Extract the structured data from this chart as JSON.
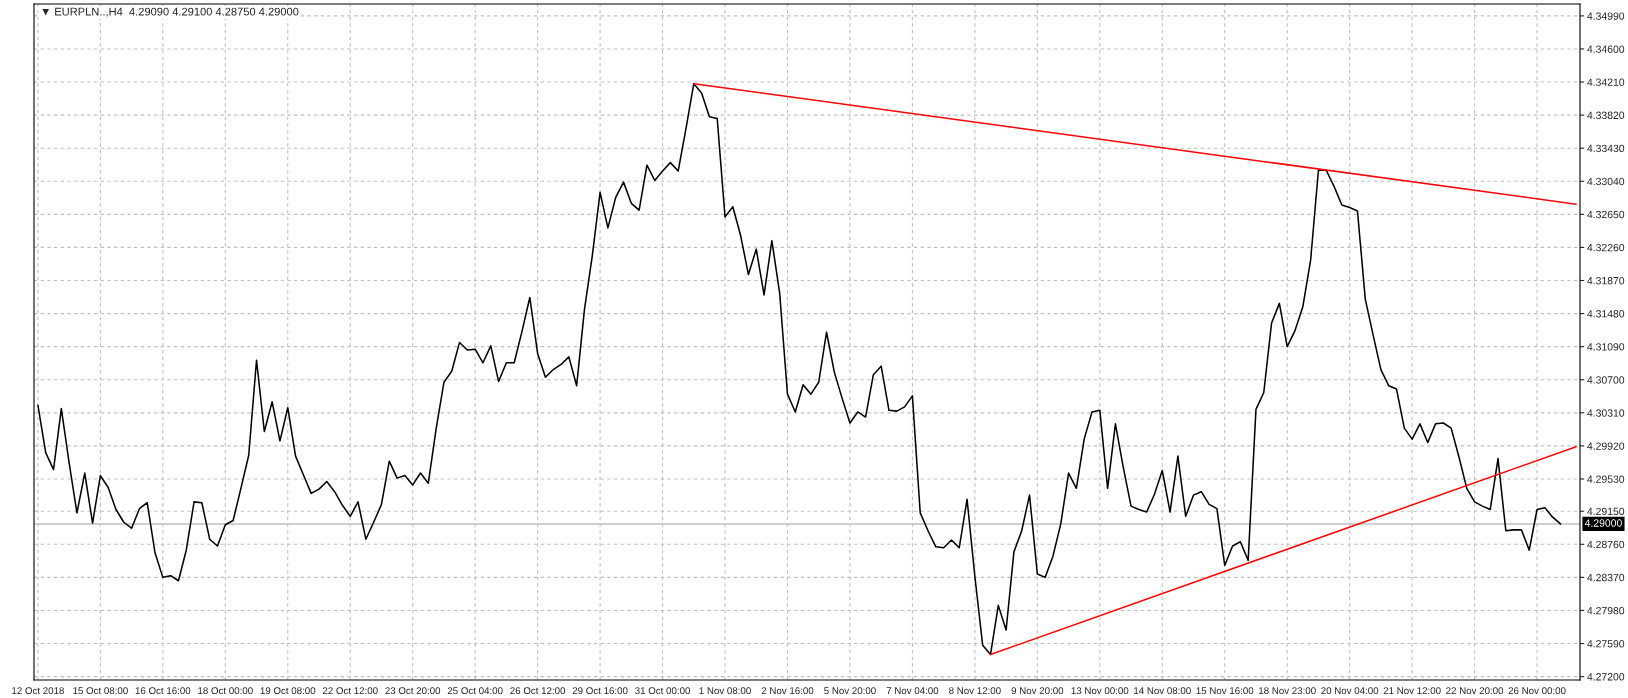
{
  "chart_data": {
    "type": "line",
    "title": "▼ EURPLN..,H4  4.29090 4.29100 4.28750 4.29000",
    "categories": [
      "12 Oct 2018",
      null,
      null,
      null,
      null,
      null,
      null,
      null,
      "15 Oct 08:00",
      null,
      null,
      null,
      null,
      null,
      null,
      null,
      "16 Oct 16:00",
      null,
      null,
      null,
      null,
      null,
      null,
      null,
      "18 Oct 00:00",
      null,
      null,
      null,
      null,
      null,
      null,
      null,
      "19 Oct 08:00",
      null,
      null,
      null,
      null,
      null,
      null,
      null,
      "22 Oct 12:00",
      null,
      null,
      null,
      null,
      null,
      null,
      null,
      "23 Oct 20:00",
      null,
      null,
      null,
      null,
      null,
      null,
      null,
      "25 Oct 04:00",
      null,
      null,
      null,
      null,
      null,
      null,
      null,
      "26 Oct 12:00",
      null,
      null,
      null,
      null,
      null,
      null,
      null,
      "29 Oct 16:00",
      null,
      null,
      null,
      null,
      null,
      null,
      null,
      "31 Oct 00:00",
      null,
      null,
      null,
      null,
      null,
      null,
      null,
      "1 Nov 08:00",
      null,
      null,
      null,
      null,
      null,
      null,
      null,
      "2 Nov 16:00",
      null,
      null,
      null,
      null,
      null,
      null,
      null,
      "5 Nov 20:00",
      null,
      null,
      null,
      null,
      null,
      null,
      null,
      "7 Nov 04:00",
      null,
      null,
      null,
      null,
      null,
      null,
      null,
      "8 Nov 12:00",
      null,
      null,
      null,
      null,
      null,
      null,
      null,
      "9 Nov 20:00",
      null,
      null,
      null,
      null,
      null,
      null,
      null,
      "13 Nov 00:00",
      null,
      null,
      null,
      null,
      null,
      null,
      null,
      "14 Nov 08:00",
      null,
      null,
      null,
      null,
      null,
      null,
      null,
      "15 Nov 16:00",
      null,
      null,
      null,
      null,
      null,
      null,
      null,
      "18 Nov 23:00",
      null,
      null,
      null,
      null,
      null,
      null,
      null,
      "20 Nov 04:00",
      null,
      null,
      null,
      null,
      null,
      null,
      null,
      "21 Nov 12:00",
      null,
      null,
      null,
      null,
      null,
      null,
      null,
      "22 Nov 20:00",
      null,
      null,
      null,
      null,
      null,
      null,
      null,
      "26 Nov 00:00",
      null,
      null,
      null,
      null,
      null
    ],
    "ylim": [
      4.2716,
      4.3513
    ],
    "yticks": [
      {
        "value": 4.272,
        "label": "4.27200"
      },
      {
        "value": 4.2759,
        "label": "4.27590"
      },
      {
        "value": 4.2798,
        "label": "4.27980"
      },
      {
        "value": 4.2837,
        "label": "4.28370"
      },
      {
        "value": 4.2876,
        "label": "4.28760"
      },
      {
        "value": 4.2915,
        "label": "4.29150"
      },
      {
        "value": 4.2953,
        "label": "4.29530"
      },
      {
        "value": 4.2992,
        "label": "4.29920"
      },
      {
        "value": 4.3031,
        "label": "4.30310"
      },
      {
        "value": 4.307,
        "label": "4.30700"
      },
      {
        "value": 4.3109,
        "label": "4.31090"
      },
      {
        "value": 4.3148,
        "label": "4.31480"
      },
      {
        "value": 4.3187,
        "label": "4.31870"
      },
      {
        "value": 4.3226,
        "label": "4.32260"
      },
      {
        "value": 4.3265,
        "label": "4.32650"
      },
      {
        "value": 4.3304,
        "label": "4.33040"
      },
      {
        "value": 4.3343,
        "label": "4.33430"
      },
      {
        "value": 4.3382,
        "label": "4.33820"
      },
      {
        "value": 4.3421,
        "label": "4.34210"
      },
      {
        "value": 4.346,
        "label": "4.34600"
      },
      {
        "value": 4.3499,
        "label": "4.34990"
      }
    ],
    "grid": true,
    "ref_lines": [
      {
        "axis": "y",
        "value": 4.29,
        "label": "4.29000",
        "color": "#c0c0c0"
      }
    ],
    "series": [
      {
        "color": "#000000",
        "values": [
          4.304,
          4.2984,
          4.2964,
          4.3036,
          4.2972,
          4.2913,
          4.296,
          4.2901,
          4.2957,
          4.2943,
          4.2917,
          4.2902,
          4.2895,
          4.2918,
          4.2925,
          4.2866,
          4.2837,
          4.2839,
          4.2833,
          4.2869,
          4.2926,
          4.2925,
          4.2882,
          4.2874,
          4.2899,
          4.2904,
          4.2942,
          4.2981,
          4.3093,
          4.3009,
          4.3044,
          4.2998,
          4.3037,
          4.298,
          4.2958,
          4.2936,
          4.2941,
          4.295,
          4.2938,
          4.2922,
          4.2909,
          4.2926,
          4.2882,
          4.2902,
          4.2923,
          4.2974,
          4.2954,
          4.2957,
          4.2946,
          4.296,
          4.2948,
          4.3012,
          4.3067,
          4.308,
          4.3114,
          4.3105,
          4.3106,
          4.309,
          4.311,
          4.3068,
          4.309,
          4.309,
          4.3127,
          4.3167,
          4.3101,
          4.3073,
          4.3082,
          4.3088,
          4.3097,
          4.3063,
          4.3153,
          4.3216,
          4.3291,
          4.3249,
          4.3285,
          4.3303,
          4.3278,
          4.327,
          4.3323,
          4.3305,
          4.3316,
          4.3326,
          4.3316,
          4.3366,
          4.3419,
          4.3408,
          4.338,
          4.3378,
          4.3262,
          4.3274,
          4.324,
          4.3194,
          4.3224,
          4.317,
          4.3234,
          4.3172,
          4.3053,
          4.3032,
          4.3064,
          4.3053,
          4.3067,
          4.3126,
          4.3079,
          4.3048,
          4.3019,
          4.3032,
          4.3026,
          4.3076,
          4.3086,
          4.3034,
          4.3033,
          4.3038,
          4.3051,
          4.2913,
          4.2892,
          4.2873,
          4.2872,
          4.2881,
          4.2872,
          4.2929,
          4.2838,
          4.2757,
          4.2746,
          4.2804,
          4.2775,
          4.2867,
          4.2892,
          4.2934,
          4.2841,
          4.2837,
          4.2862,
          4.29,
          4.296,
          4.2942,
          4.3,
          4.3032,
          4.3034,
          4.2942,
          4.3018,
          4.2967,
          4.2921,
          4.2917,
          4.2914,
          4.2935,
          4.2963,
          4.2914,
          4.298,
          4.2909,
          4.2934,
          4.2938,
          4.2923,
          4.2918,
          4.2851,
          4.2874,
          4.2879,
          4.2857,
          4.3035,
          4.3055,
          4.3137,
          4.316,
          4.3109,
          4.3128,
          4.3156,
          4.3211,
          4.3317,
          4.3317,
          4.3298,
          4.3276,
          4.3273,
          4.3269,
          4.3165,
          4.3123,
          4.3082,
          4.3063,
          4.3059,
          4.3013,
          4.3,
          4.3018,
          4.2996,
          4.3018,
          4.3019,
          4.3013,
          4.2979,
          4.2942,
          4.2926,
          4.2921,
          4.2917,
          4.2977,
          4.2892,
          4.2893,
          4.2893,
          4.2869,
          4.2917,
          4.2919,
          4.2908,
          4.29,
          null,
          null
        ]
      },
      {
        "color": "#ff0000",
        "values": [
          null,
          null,
          null,
          null,
          null,
          null,
          null,
          null,
          null,
          null,
          null,
          null,
          null,
          null,
          null,
          null,
          null,
          null,
          null,
          null,
          null,
          null,
          null,
          null,
          null,
          null,
          null,
          null,
          null,
          null,
          null,
          null,
          null,
          null,
          null,
          null,
          null,
          null,
          null,
          null,
          null,
          null,
          null,
          null,
          null,
          null,
          null,
          null,
          null,
          null,
          null,
          null,
          null,
          null,
          null,
          null,
          null,
          null,
          null,
          null,
          null,
          null,
          null,
          null,
          null,
          null,
          null,
          null,
          null,
          null,
          null,
          null,
          null,
          null,
          null,
          null,
          null,
          null,
          null,
          null,
          null,
          null,
          null,
          null,
          4.3419,
          null,
          null,
          null,
          null,
          null,
          null,
          null,
          null,
          null,
          null,
          null,
          null,
          null,
          null,
          null,
          null,
          null,
          null,
          null,
          null,
          null,
          null,
          null,
          null,
          null,
          null,
          null,
          null,
          null,
          null,
          null,
          null,
          null,
          null,
          null,
          null,
          null,
          null,
          null,
          null,
          null,
          null,
          null,
          null,
          null,
          null,
          null,
          null,
          null,
          null,
          null,
          null,
          null,
          null,
          null,
          null,
          null,
          null,
          null,
          null,
          null,
          null,
          null,
          null,
          null,
          null,
          null,
          null,
          null,
          null,
          null,
          null,
          null,
          null,
          null,
          null,
          null,
          null,
          null,
          null,
          null,
          null,
          null,
          null,
          null,
          null,
          null,
          null,
          null,
          null,
          null,
          null,
          null,
          null,
          null,
          null,
          null,
          null,
          null,
          null,
          null,
          null,
          null,
          null,
          null,
          null,
          null,
          null,
          null,
          null,
          null,
          null,
          4.3277
        ]
      },
      {
        "color": "#ff0000",
        "values": [
          null,
          null,
          null,
          null,
          null,
          null,
          null,
          null,
          null,
          null,
          null,
          null,
          null,
          null,
          null,
          null,
          null,
          null,
          null,
          null,
          null,
          null,
          null,
          null,
          null,
          null,
          null,
          null,
          null,
          null,
          null,
          null,
          null,
          null,
          null,
          null,
          null,
          null,
          null,
          null,
          null,
          null,
          null,
          null,
          null,
          null,
          null,
          null,
          null,
          null,
          null,
          null,
          null,
          null,
          null,
          null,
          null,
          null,
          null,
          null,
          null,
          null,
          null,
          null,
          null,
          null,
          null,
          null,
          null,
          null,
          null,
          null,
          null,
          null,
          null,
          null,
          null,
          null,
          null,
          null,
          null,
          null,
          null,
          null,
          null,
          null,
          null,
          null,
          null,
          null,
          null,
          null,
          null,
          null,
          null,
          null,
          null,
          null,
          null,
          null,
          null,
          null,
          null,
          null,
          null,
          null,
          null,
          null,
          null,
          null,
          null,
          null,
          null,
          null,
          null,
          null,
          null,
          null,
          null,
          null,
          null,
          null,
          4.2746,
          null,
          null,
          null,
          null,
          null,
          null,
          null,
          null,
          null,
          null,
          null,
          null,
          null,
          null,
          null,
          null,
          null,
          null,
          null,
          null,
          null,
          null,
          null,
          null,
          null,
          null,
          null,
          null,
          null,
          null,
          null,
          null,
          null,
          null,
          null,
          null,
          null,
          null,
          null,
          null,
          null,
          null,
          null,
          null,
          null,
          null,
          null,
          null,
          null,
          null,
          null,
          null,
          null,
          null,
          null,
          null,
          null,
          null,
          null,
          null,
          null,
          null,
          null,
          null,
          null,
          null,
          null,
          null,
          null,
          null,
          null,
          null,
          null,
          null,
          4.2991
        ]
      }
    ]
  }
}
